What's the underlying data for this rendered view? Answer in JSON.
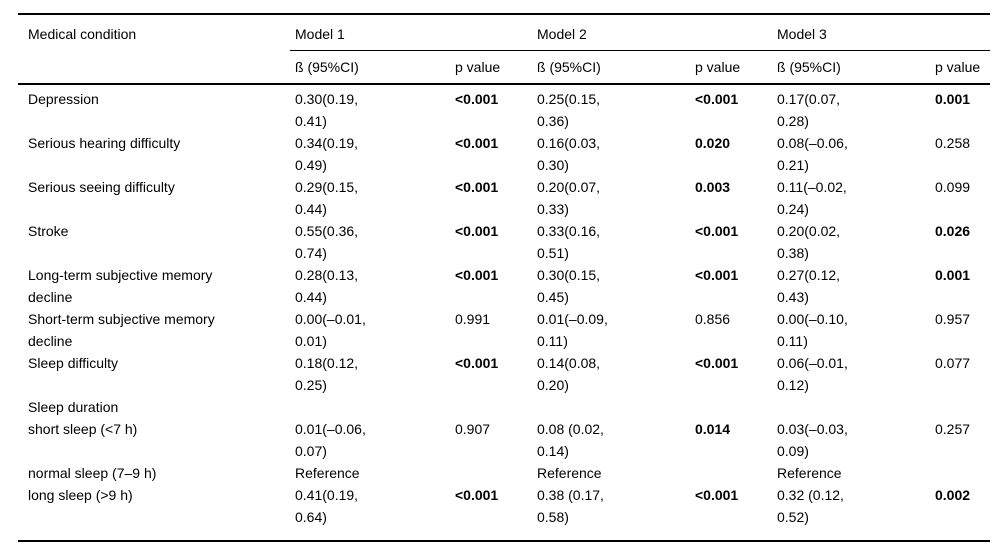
{
  "page": {
    "background_color": "#ffffff",
    "text_color": "#000000",
    "rule_color": "#000000"
  },
  "table": {
    "header": {
      "condition": "Medical condition",
      "models": [
        "Model 1",
        "Model 2",
        "Model 3"
      ],
      "beta": "ß (95%CI)",
      "p": "p value"
    },
    "rows": [
      {
        "condition": "Depression",
        "m1": {
          "beta": "0.30(0.19, 0.41)",
          "p": "<0.001",
          "bold": true
        },
        "m2": {
          "beta": "0.25(0.15, 0.36)",
          "p": "<0.001",
          "bold": true
        },
        "m3": {
          "beta": "0.17(0.07, 0.28)",
          "p": "0.001",
          "bold": true
        }
      },
      {
        "condition": "Serious hearing difficulty",
        "m1": {
          "beta": "0.34(0.19, 0.49)",
          "p": "<0.001",
          "bold": true
        },
        "m2": {
          "beta": "0.16(0.03, 0.30)",
          "p": "0.020",
          "bold": true
        },
        "m3": {
          "beta": "0.08(–0.06, 0.21)",
          "p": "0.258",
          "bold": false
        }
      },
      {
        "condition": "Serious seeing difficulty",
        "m1": {
          "beta": "0.29(0.15, 0.44)",
          "p": "<0.001",
          "bold": true
        },
        "m2": {
          "beta": "0.20(0.07, 0.33)",
          "p": "0.003",
          "bold": true
        },
        "m3": {
          "beta": "0.11(–0.02, 0.24)",
          "p": "0.099",
          "bold": false
        }
      },
      {
        "condition": "Stroke",
        "m1": {
          "beta": "0.55(0.36, 0.74)",
          "p": "<0.001",
          "bold": true
        },
        "m2": {
          "beta": "0.33(0.16, 0.51)",
          "p": "<0.001",
          "bold": true
        },
        "m3": {
          "beta": "0.20(0.02, 0.38)",
          "p": "0.026",
          "bold": true
        }
      },
      {
        "condition": "Long-term subjective memory decline",
        "m1": {
          "beta": "0.28(0.13, 0.44)",
          "p": "<0.001",
          "bold": true
        },
        "m2": {
          "beta": "0.30(0.15, 0.45)",
          "p": "<0.001",
          "bold": true
        },
        "m3": {
          "beta": "0.27(0.12, 0.43)",
          "p": "0.001",
          "bold": true
        }
      },
      {
        "condition": "Short-term subjective memory decline",
        "m1": {
          "beta": "0.00(–0.01, 0.01)",
          "p": "0.991",
          "bold": false
        },
        "m2": {
          "beta": "0.01(–0.09, 0.11)",
          "p": "0.856",
          "bold": false
        },
        "m3": {
          "beta": "0.00(–0.10, 0.11)",
          "p": "0.957",
          "bold": false
        }
      },
      {
        "condition": "Sleep difficulty",
        "m1": {
          "beta": "0.18(0.12, 0.25)",
          "p": "<0.001",
          "bold": true
        },
        "m2": {
          "beta": "0.14(0.08, 0.20)",
          "p": "<0.001",
          "bold": true
        },
        "m3": {
          "beta": "0.06(–0.01, 0.12)",
          "p": "0.077",
          "bold": false
        }
      },
      {
        "condition": "Sleep duration",
        "section": true,
        "m1": null,
        "m2": null,
        "m3": null
      },
      {
        "condition": "short sleep (<7 h)",
        "m1": {
          "beta": "0.01(–0.06, 0.07)",
          "p": "0.907",
          "bold": false
        },
        "m2": {
          "beta": "0.08 (0.02, 0.14)",
          "p": "0.014",
          "bold": true
        },
        "m3": {
          "beta": "0.03(–0.03, 0.09)",
          "p": "0.257",
          "bold": false
        }
      },
      {
        "condition": "normal sleep (7–9 h)",
        "m1": {
          "beta": "Reference"
        },
        "m2": {
          "beta": "Reference"
        },
        "m3": {
          "beta": "Reference"
        }
      },
      {
        "condition": "long sleep (>9 h)",
        "m1": {
          "beta": "0.41(0.19, 0.64)",
          "p": "<0.001",
          "bold": true
        },
        "m2": {
          "beta": "0.38 (0.17, 0.58)",
          "p": "<0.001",
          "bold": true
        },
        "m3": {
          "beta": "0.32 (0.12, 0.52)",
          "p": "0.002",
          "bold": true
        }
      }
    ]
  }
}
